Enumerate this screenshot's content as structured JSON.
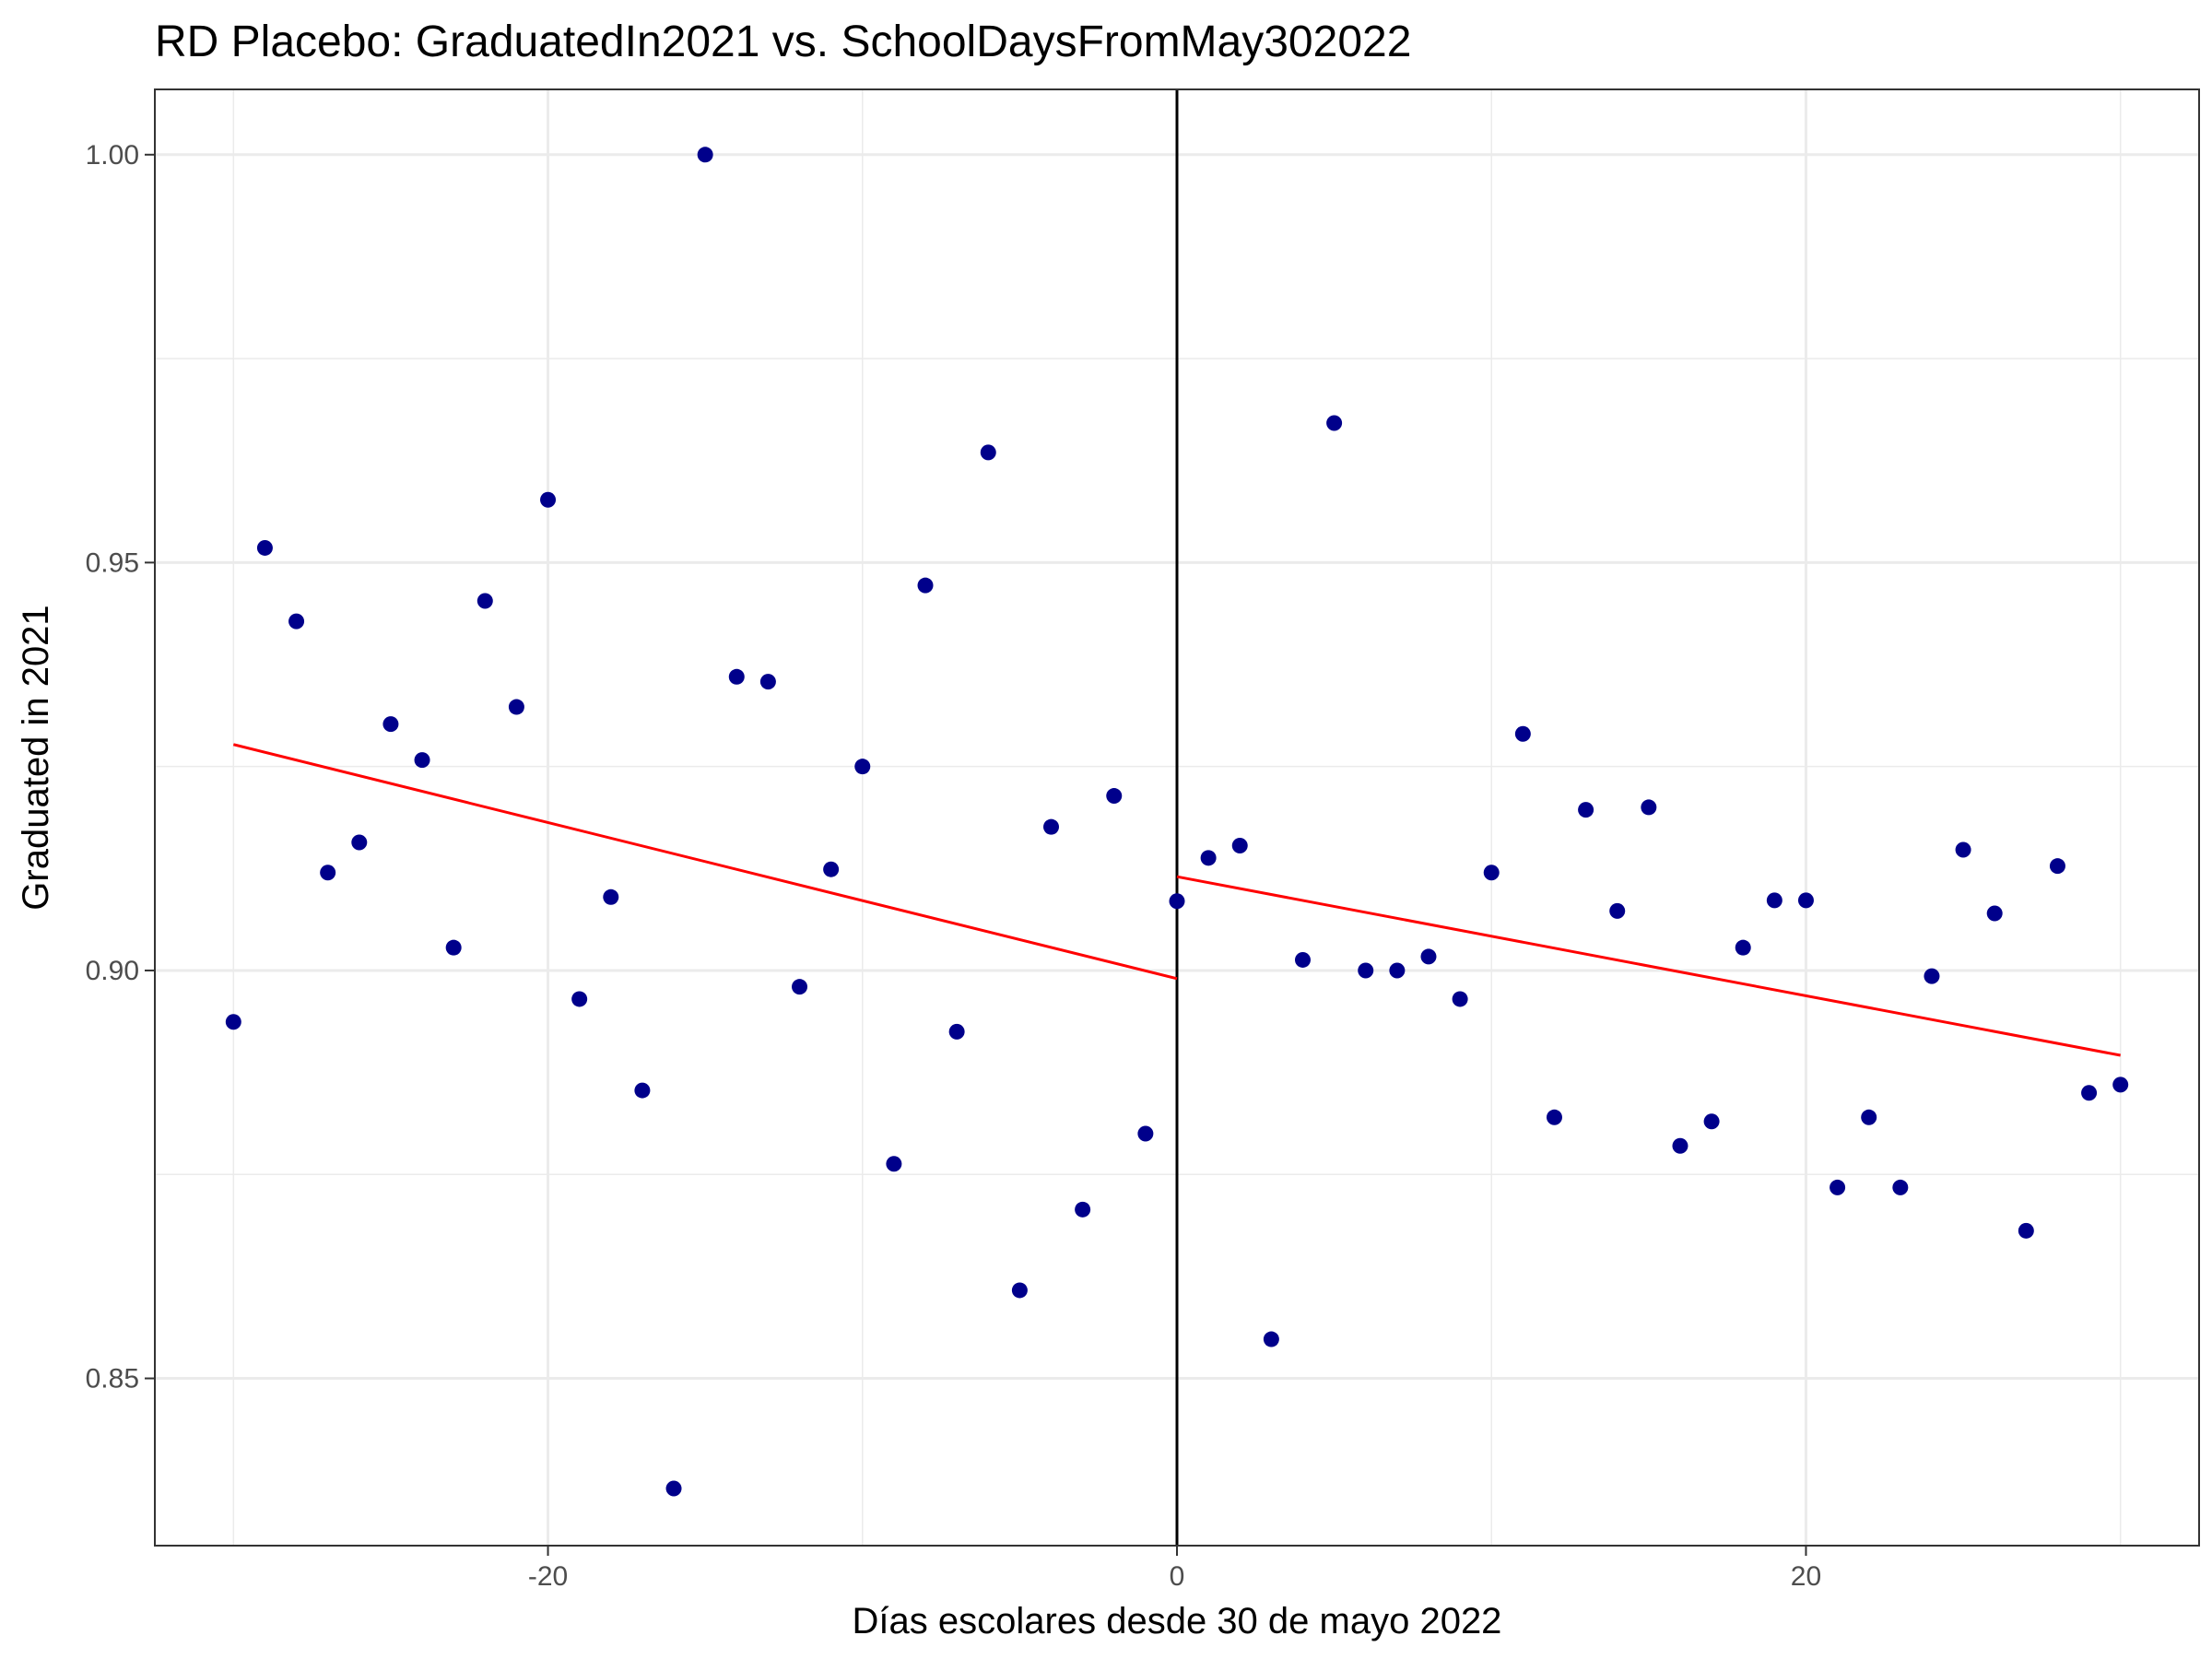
{
  "chart_data": {
    "type": "scatter",
    "title": "RD Placebo: GraduatedIn2021 vs. SchoolDaysFromMay302022",
    "xlabel": "Días escolares desde 30 de mayo 2022",
    "ylabel": "Graduated in 2021",
    "xlim": [
      -32.5,
      32.5
    ],
    "ylim": [
      0.8295,
      1.008
    ],
    "x_ticks": [
      -20,
      0,
      20
    ],
    "x_tick_labels": [
      "-20",
      "0",
      "20"
    ],
    "y_ticks": [
      0.85,
      0.9,
      0.95,
      1.0
    ],
    "y_tick_labels": [
      "0.85",
      "0.90",
      "0.95",
      "1.00"
    ],
    "grid": true,
    "cutoff": 0,
    "colors": {
      "points": "#00008b",
      "fit": "#ff0000",
      "cutoff": "#000000",
      "grid": "#ebebeb",
      "panel_border": "#333333"
    },
    "points": {
      "x": [
        -30,
        -29,
        -28,
        -27,
        -26,
        -25,
        -24,
        -23,
        -22,
        -21,
        -20,
        -19,
        -18,
        -17,
        -16,
        -15,
        -14,
        -13,
        -12,
        -11,
        -10,
        -9,
        -8,
        -7,
        -6,
        -5,
        -4,
        -3,
        -2,
        -1,
        0,
        1,
        2,
        3,
        4,
        5,
        6,
        7,
        8,
        9,
        10,
        11,
        12,
        13,
        14,
        15,
        16,
        17,
        18,
        19,
        20,
        21,
        22,
        23,
        24,
        25,
        26,
        27,
        28,
        29,
        30
      ],
      "y": [
        0.8937,
        0.9518,
        0.9428,
        0.912,
        0.9157,
        0.9302,
        0.9258,
        0.9028,
        0.9453,
        0.9323,
        0.9577,
        0.8965,
        0.909,
        0.8853,
        0.8365,
        1.0,
        0.936,
        0.9354,
        0.898,
        0.9124,
        0.925,
        0.8763,
        0.9472,
        0.8925,
        0.9635,
        0.8608,
        0.9176,
        0.8707,
        0.9214,
        0.88,
        0.9085,
        0.9138,
        0.9153,
        0.8548,
        0.9013,
        0.9671,
        0.9,
        0.9,
        0.9017,
        0.8965,
        0.912,
        0.929,
        0.882,
        0.9197,
        0.9073,
        0.92,
        0.8785,
        0.8815,
        0.9028,
        0.9086,
        0.9086,
        0.8734,
        0.882,
        0.8734,
        0.8993,
        0.9148,
        0.907,
        0.8681,
        0.9128,
        0.885,
        0.886
      ]
    },
    "fit_lines": [
      {
        "x": [
          -30,
          0
        ],
        "y": [
          0.9277,
          0.899
        ]
      },
      {
        "x": [
          0,
          30
        ],
        "y": [
          0.9115,
          0.8896
        ]
      }
    ]
  }
}
